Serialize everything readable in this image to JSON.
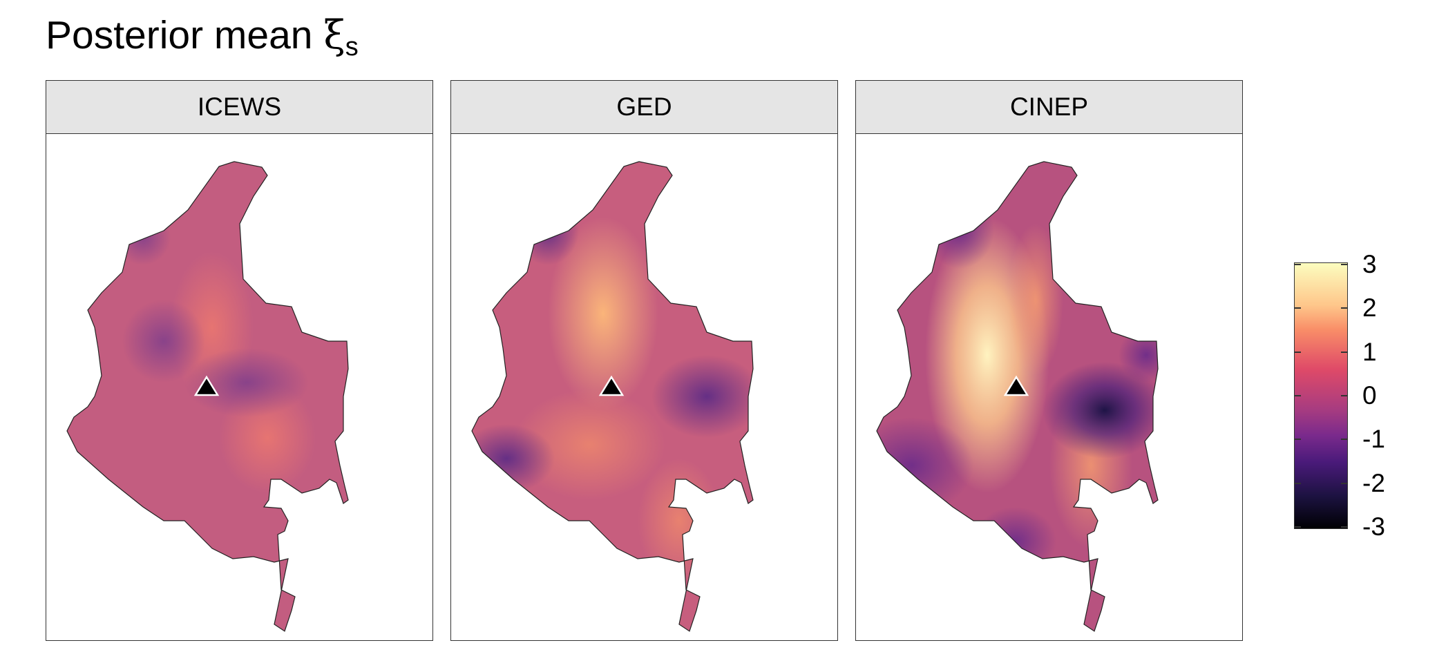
{
  "title": {
    "text": "Posterior mean ",
    "symbol": "ξ",
    "subscript": "s"
  },
  "panels": [
    {
      "label": "ICEWS",
      "peak_value": 1.3
    },
    {
      "label": "GED",
      "peak_value": 2.2
    },
    {
      "label": "CINEP",
      "peak_value": 3.0
    }
  ],
  "legend": {
    "ticks": [
      "3",
      "2",
      "1",
      "0",
      "-1",
      "-2",
      "-3"
    ],
    "min": -3,
    "max": 3,
    "palette": "magma",
    "colors": [
      "#000004",
      "#3b0f70",
      "#8c2981",
      "#de4968",
      "#fe9f6d",
      "#fcfdbf"
    ]
  },
  "marker": {
    "shape": "triangle",
    "color": "#000000"
  }
}
